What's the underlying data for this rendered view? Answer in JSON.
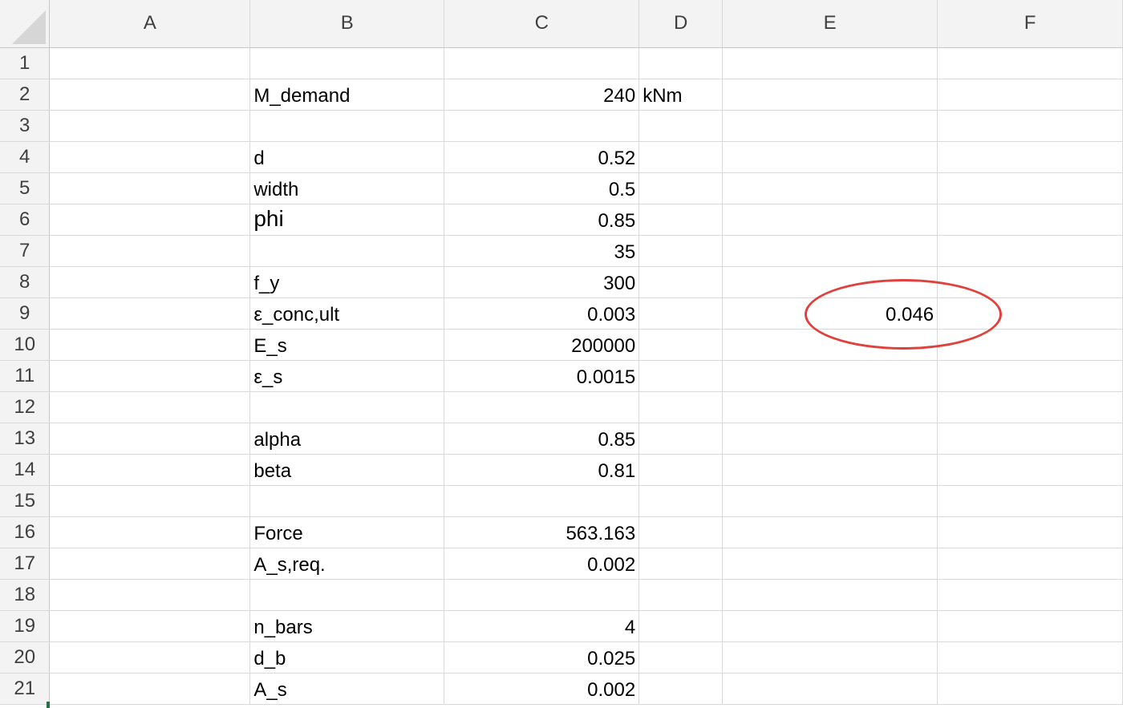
{
  "columns": [
    "A",
    "B",
    "C",
    "D",
    "E",
    "F"
  ],
  "rows": [
    {
      "num": "1",
      "B": "",
      "C": "",
      "D": "",
      "E": ""
    },
    {
      "num": "2",
      "B": "M_demand",
      "C": "240",
      "D": "kNm",
      "E": ""
    },
    {
      "num": "3",
      "B": "",
      "C": "",
      "D": "",
      "E": ""
    },
    {
      "num": "4",
      "B": "d",
      "C": "0.52",
      "D": "",
      "E": ""
    },
    {
      "num": "5",
      "B": "width",
      "C": "0.5",
      "D": "",
      "E": ""
    },
    {
      "num": "6",
      "B": "phi",
      "C": "0.85",
      "D": "",
      "E": ""
    },
    {
      "num": "7",
      "B": "",
      "C": "35",
      "D": "",
      "E": ""
    },
    {
      "num": "8",
      "B": "f_y",
      "C": "300",
      "D": "",
      "E": ""
    },
    {
      "num": "9",
      "B": "ε_conc,ult",
      "C": "0.003",
      "D": "",
      "E": "0.046"
    },
    {
      "num": "10",
      "B": "E_s",
      "C": "200000",
      "D": "",
      "E": ""
    },
    {
      "num": "11",
      "B": "ε_s",
      "C": "0.0015",
      "D": "",
      "E": ""
    },
    {
      "num": "12",
      "B": "",
      "C": "",
      "D": "",
      "E": ""
    },
    {
      "num": "13",
      "B": "alpha",
      "C": "0.85",
      "D": "",
      "E": ""
    },
    {
      "num": "14",
      "B": "beta",
      "C": "0.81",
      "D": "",
      "E": ""
    },
    {
      "num": "15",
      "B": "",
      "C": "",
      "D": "",
      "E": ""
    },
    {
      "num": "16",
      "B": "Force",
      "C": "563.163",
      "D": "",
      "E": ""
    },
    {
      "num": "17",
      "B": "A_s,req.",
      "C": "0.002",
      "D": "",
      "E": ""
    },
    {
      "num": "18",
      "B": "",
      "C": "",
      "D": "",
      "E": ""
    },
    {
      "num": "19",
      "B": "n_bars",
      "C": "4",
      "D": "",
      "E": ""
    },
    {
      "num": "20",
      "B": "d_b",
      "C": "0.025",
      "D": "",
      "E": ""
    },
    {
      "num": "21",
      "B": "A_s",
      "C": "0.002",
      "D": "",
      "E": ""
    }
  ],
  "annotation": {
    "cell": "E9",
    "shape": "ellipse",
    "color": "#e0413c"
  },
  "colors": {
    "header_bg": "#f3f3f3",
    "gridline": "#d9d9d9",
    "accent": "#217346"
  }
}
